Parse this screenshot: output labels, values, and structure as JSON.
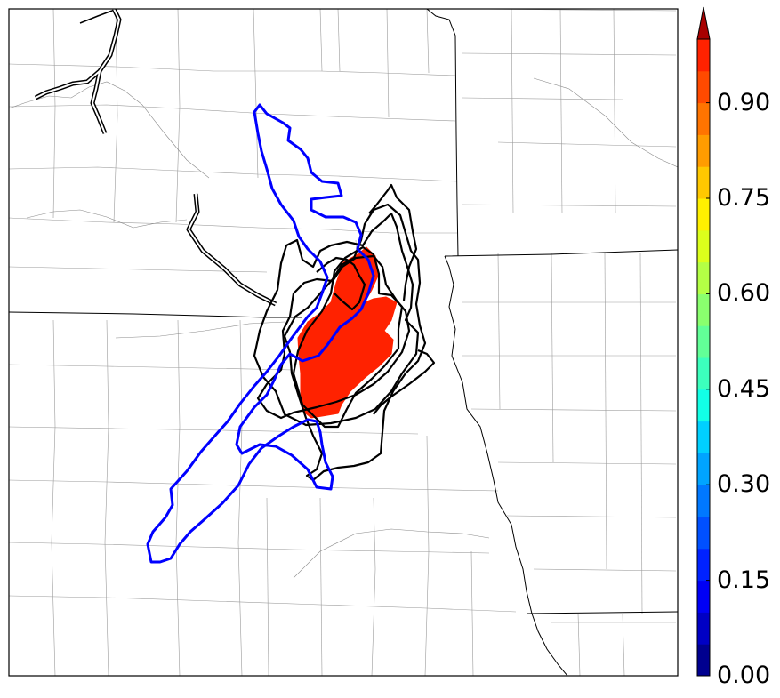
{
  "colorbar": {
    "ticks": [
      "0.00",
      "0.15",
      "0.30",
      "0.45",
      "0.60",
      "0.75",
      "0.90"
    ],
    "min": 0.0,
    "max": 1.0,
    "step": 0.05,
    "extend": "max",
    "colors": [
      "#00008f",
      "#0000c4",
      "#0000f5",
      "#0022ff",
      "#0050ff",
      "#0078ff",
      "#00a4ff",
      "#00d0ff",
      "#12ffe6",
      "#3cffbd",
      "#62ff97",
      "#8aff6e",
      "#b4ff45",
      "#dcff1c",
      "#fff000",
      "#ffc800",
      "#ff9c00",
      "#ff7400",
      "#ff4a00",
      "#ff2200",
      "#d80000",
      "#a80000"
    ]
  },
  "map": {
    "probability_area": {
      "color": "#ff2200",
      "value_range": [
        0.85,
        0.9
      ]
    },
    "observed_contour": {
      "color": "#0000ff"
    },
    "member_contours": {
      "color": "#000000",
      "count": 7
    },
    "colors": {
      "county_lines": "#999999",
      "state_lines": "#000000",
      "rivers": "#000000"
    }
  }
}
